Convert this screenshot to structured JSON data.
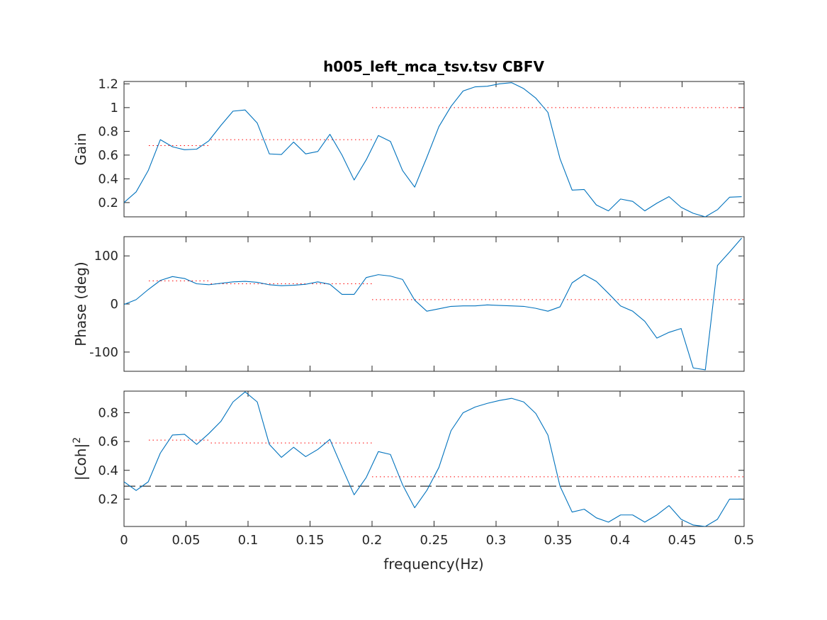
{
  "figure": {
    "title": "h005_left_mca_tsv.tsv CBFV",
    "xlabel": "frequency(Hz)"
  },
  "chart_data": [
    {
      "type": "line",
      "name": "gain",
      "ylabel": "Gain",
      "xlim": [
        0,
        0.5
      ],
      "ylim": [
        0.08,
        1.22
      ],
      "xticks": [
        0,
        0.05,
        0.1,
        0.15,
        0.2,
        0.25,
        0.3,
        0.35,
        0.4,
        0.45,
        0.5
      ],
      "xtick_labels": [
        "0",
        "0.05",
        "0.1",
        "0.15",
        "0.2",
        "0.25",
        "0.3",
        "0.35",
        "0.4",
        "0.45",
        "0.5"
      ],
      "show_xtick_labels": false,
      "yticks": [
        0.2,
        0.4,
        0.6,
        0.8,
        1,
        1.2
      ],
      "ytick_labels": [
        "0.2",
        "0.4",
        "0.6",
        "0.8",
        "1",
        "1.2"
      ],
      "grid": false,
      "series_color": "#0072BD",
      "x": [
        0,
        0.00977,
        0.01953,
        0.0293,
        0.03906,
        0.04883,
        0.05859,
        0.06836,
        0.07813,
        0.08789,
        0.09766,
        0.10742,
        0.11719,
        0.12695,
        0.13672,
        0.14648,
        0.15625,
        0.16602,
        0.17578,
        0.18555,
        0.19531,
        0.20508,
        0.21484,
        0.22461,
        0.23438,
        0.24414,
        0.25391,
        0.26367,
        0.27344,
        0.2832,
        0.29297,
        0.30273,
        0.3125,
        0.32227,
        0.33203,
        0.3418,
        0.35156,
        0.36133,
        0.37109,
        0.38086,
        0.39063,
        0.40039,
        0.41016,
        0.41992,
        0.42969,
        0.43945,
        0.44922,
        0.45898,
        0.46875,
        0.47852,
        0.48828,
        0.49805
      ],
      "y": [
        0.2,
        0.29,
        0.47,
        0.73,
        0.67,
        0.645,
        0.65,
        0.72,
        0.85,
        0.97,
        0.98,
        0.87,
        0.61,
        0.605,
        0.71,
        0.61,
        0.63,
        0.775,
        0.6,
        0.39,
        0.56,
        0.765,
        0.715,
        0.47,
        0.33,
        0.58,
        0.84,
        1.01,
        1.14,
        1.175,
        1.18,
        1.2,
        1.21,
        1.16,
        1.08,
        0.96,
        0.57,
        0.305,
        0.31,
        0.18,
        0.13,
        0.23,
        0.21,
        0.13,
        0.195,
        0.25,
        0.16,
        0.11,
        0.08,
        0.14,
        0.245,
        0.25
      ],
      "reference_lines": [
        {
          "color": "#FF0000",
          "style": "dotted",
          "x": [
            0.02,
            0.07
          ],
          "y": [
            0.68,
            0.68
          ]
        },
        {
          "color": "#FF0000",
          "style": "dotted",
          "x": [
            0.07,
            0.2
          ],
          "y": [
            0.73,
            0.73
          ]
        },
        {
          "color": "#FF0000",
          "style": "dotted",
          "x": [
            0.2,
            0.5
          ],
          "y": [
            1,
            1
          ]
        }
      ]
    },
    {
      "type": "line",
      "name": "phase",
      "ylabel": "Phase (deg)",
      "xlim": [
        0,
        0.5
      ],
      "ylim": [
        -140,
        140
      ],
      "xticks": [
        0,
        0.05,
        0.1,
        0.15,
        0.2,
        0.25,
        0.3,
        0.35,
        0.4,
        0.45,
        0.5
      ],
      "xtick_labels": [
        "0",
        "0.05",
        "0.1",
        "0.15",
        "0.2",
        "0.25",
        "0.3",
        "0.35",
        "0.4",
        "0.45",
        "0.5"
      ],
      "show_xtick_labels": false,
      "yticks": [
        -100,
        0,
        100
      ],
      "ytick_labels": [
        "-100",
        "0",
        "100"
      ],
      "grid": false,
      "series_color": "#0072BD",
      "x": [
        0,
        0.00977,
        0.01953,
        0.0293,
        0.03906,
        0.04883,
        0.05859,
        0.06836,
        0.07813,
        0.08789,
        0.09766,
        0.10742,
        0.11719,
        0.12695,
        0.13672,
        0.14648,
        0.15625,
        0.16602,
        0.17578,
        0.18555,
        0.19531,
        0.20508,
        0.21484,
        0.22461,
        0.23438,
        0.24414,
        0.25391,
        0.26367,
        0.27344,
        0.2832,
        0.29297,
        0.30273,
        0.3125,
        0.32227,
        0.33203,
        0.3418,
        0.35156,
        0.36133,
        0.37109,
        0.38086,
        0.39063,
        0.40039,
        0.41016,
        0.41992,
        0.42969,
        0.43945,
        0.44922,
        0.45898,
        0.46875,
        0.47852,
        0.48828,
        0.49805
      ],
      "y": [
        -1,
        9,
        30,
        49,
        57,
        53,
        42,
        40,
        43,
        46,
        47,
        45,
        40,
        38,
        39,
        41,
        46,
        41,
        20,
        20,
        55,
        61,
        58,
        51,
        8,
        -15,
        -10,
        -5,
        -4,
        -4,
        -2,
        -3,
        -4,
        -5,
        -9,
        -15,
        -6,
        44,
        61,
        47,
        22,
        -4,
        -15,
        -36,
        -71,
        -59,
        -51,
        -133,
        -137,
        80,
        108,
        137
      ],
      "reference_lines": [
        {
          "color": "#FF0000",
          "style": "dotted",
          "x": [
            0.02,
            0.07
          ],
          "y": [
            48,
            48
          ]
        },
        {
          "color": "#FF0000",
          "style": "dotted",
          "x": [
            0.07,
            0.2
          ],
          "y": [
            42,
            42
          ]
        },
        {
          "color": "#FF0000",
          "style": "dotted",
          "x": [
            0.2,
            0.5
          ],
          "y": [
            9,
            9
          ]
        }
      ]
    },
    {
      "type": "line",
      "name": "coherence",
      "ylabel": "|Coh|",
      "ylabel_superscript": "2",
      "xlim": [
        0,
        0.5
      ],
      "ylim": [
        0.01,
        0.95
      ],
      "xticks": [
        0,
        0.05,
        0.1,
        0.15,
        0.2,
        0.25,
        0.3,
        0.35,
        0.4,
        0.45,
        0.5
      ],
      "xtick_labels": [
        "0",
        "0.05",
        "0.1",
        "0.15",
        "0.2",
        "0.25",
        "0.3",
        "0.35",
        "0.4",
        "0.45",
        "0.5"
      ],
      "show_xtick_labels": true,
      "yticks": [
        0.2,
        0.4,
        0.6,
        0.8
      ],
      "ytick_labels": [
        "0.2",
        "0.4",
        "0.6",
        "0.8"
      ],
      "grid": false,
      "series_color": "#0072BD",
      "x": [
        0,
        0.00977,
        0.01953,
        0.0293,
        0.03906,
        0.04883,
        0.05859,
        0.06836,
        0.07813,
        0.08789,
        0.09766,
        0.10742,
        0.11719,
        0.12695,
        0.13672,
        0.14648,
        0.15625,
        0.16602,
        0.17578,
        0.18555,
        0.19531,
        0.20508,
        0.21484,
        0.22461,
        0.23438,
        0.24414,
        0.25391,
        0.26367,
        0.27344,
        0.2832,
        0.29297,
        0.30273,
        0.3125,
        0.32227,
        0.33203,
        0.3418,
        0.35156,
        0.36133,
        0.37109,
        0.38086,
        0.39063,
        0.40039,
        0.41016,
        0.41992,
        0.42969,
        0.43945,
        0.44922,
        0.45898,
        0.46875,
        0.47852,
        0.48828,
        0.49805
      ],
      "y": [
        0.32,
        0.26,
        0.32,
        0.52,
        0.645,
        0.65,
        0.58,
        0.655,
        0.74,
        0.875,
        0.945,
        0.875,
        0.58,
        0.49,
        0.56,
        0.495,
        0.545,
        0.615,
        0.42,
        0.23,
        0.35,
        0.53,
        0.51,
        0.3,
        0.14,
        0.26,
        0.42,
        0.675,
        0.8,
        0.84,
        0.865,
        0.885,
        0.9,
        0.875,
        0.795,
        0.645,
        0.29,
        0.11,
        0.13,
        0.07,
        0.04,
        0.09,
        0.09,
        0.04,
        0.09,
        0.155,
        0.06,
        0.02,
        0.01,
        0.06,
        0.2,
        0.2
      ],
      "reference_lines": [
        {
          "color": "#FF0000",
          "style": "dotted",
          "x": [
            0.02,
            0.07
          ],
          "y": [
            0.61,
            0.61
          ]
        },
        {
          "color": "#FF0000",
          "style": "dotted",
          "x": [
            0.07,
            0.2
          ],
          "y": [
            0.59,
            0.59
          ]
        },
        {
          "color": "#FF0000",
          "style": "dotted",
          "x": [
            0.2,
            0.5
          ],
          "y": [
            0.355,
            0.355
          ]
        },
        {
          "color": "#000000",
          "style": "dashed",
          "x": [
            0,
            0.5
          ],
          "y": [
            0.29,
            0.29
          ]
        }
      ]
    }
  ]
}
